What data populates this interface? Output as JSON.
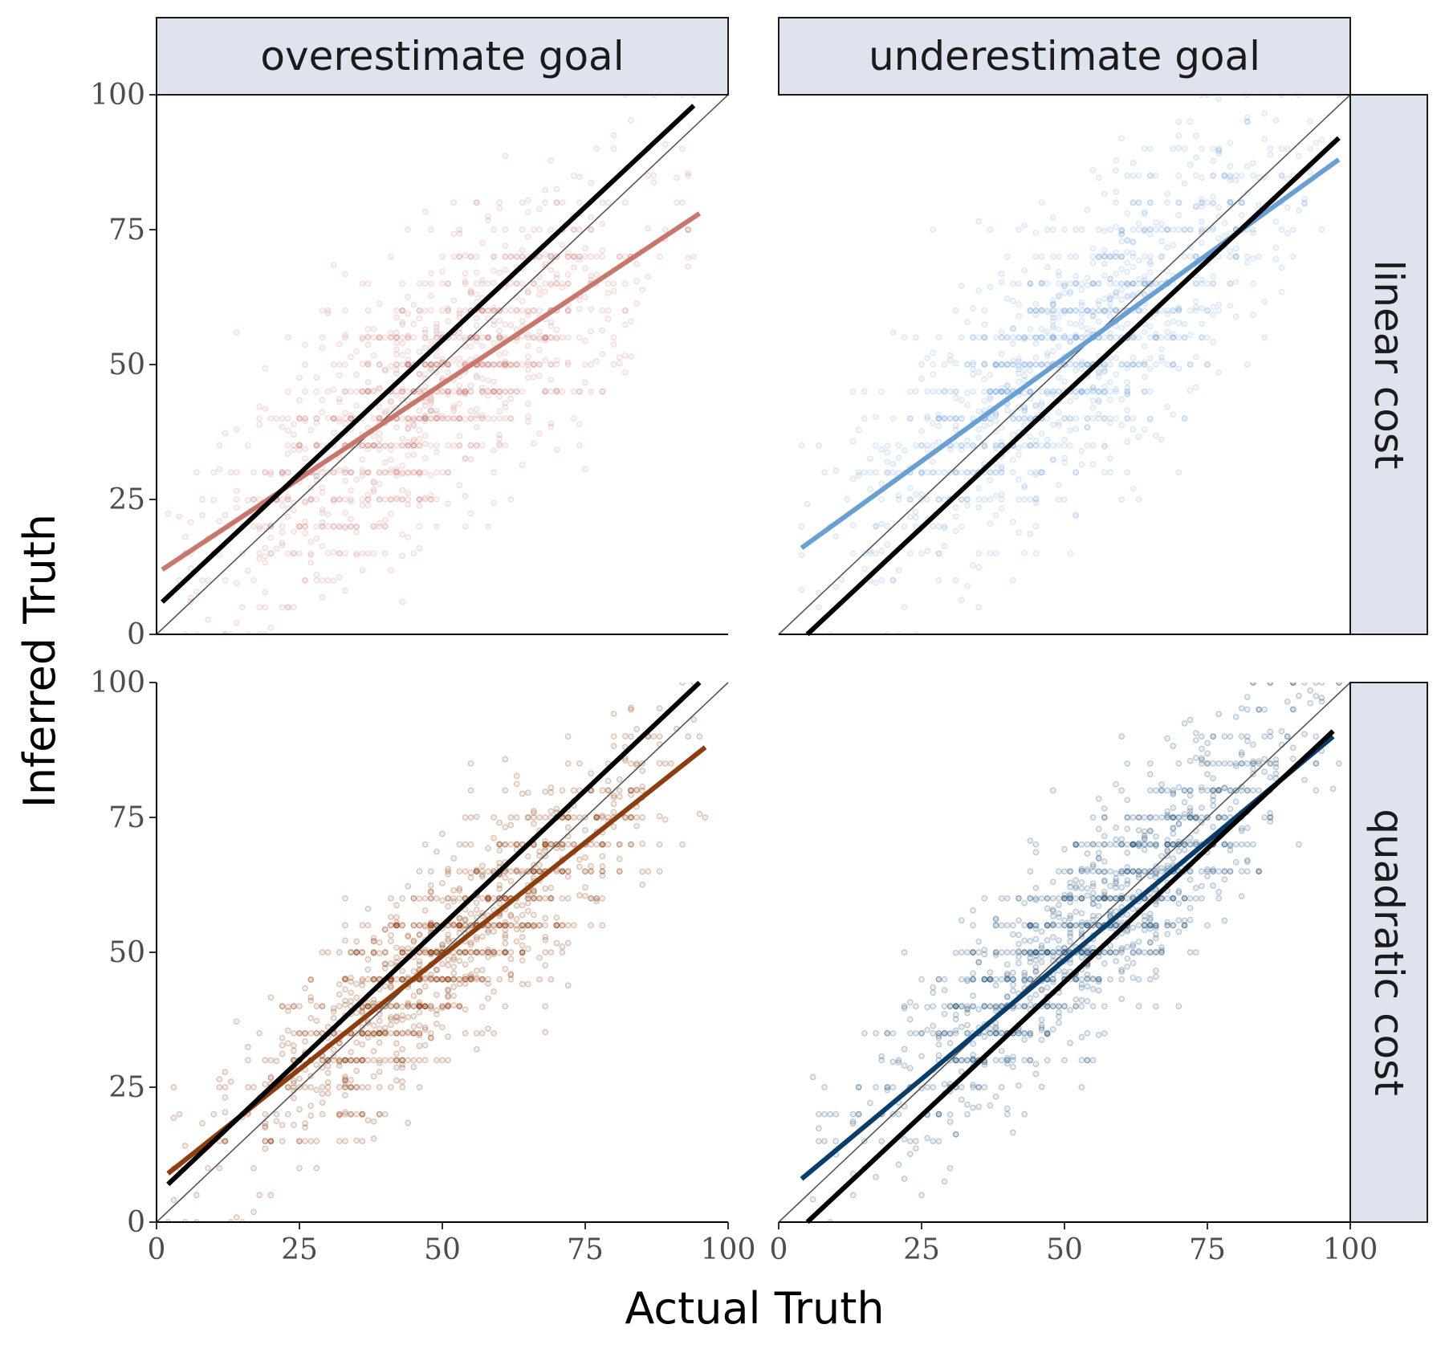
{
  "chart_data": {
    "type": "scatter",
    "layout": "facet-grid",
    "xlabel": "Actual Truth",
    "ylabel": "Inferred Truth",
    "xlim": [
      0,
      100
    ],
    "ylim": [
      0,
      100
    ],
    "xticks": [
      "0",
      "25",
      "50",
      "75",
      "100"
    ],
    "yticks": [
      "0",
      "25",
      "50",
      "75",
      "100"
    ],
    "column_labels": [
      "overestimate goal",
      "underestimate goal"
    ],
    "row_labels": [
      "linear cost",
      "quadratic cost"
    ],
    "reference_line": {
      "description": "identity y = x",
      "color": "#555555"
    },
    "panels": [
      {
        "column": "overestimate goal",
        "row": "linear cost",
        "point_color": "#c9766e",
        "point_opacity": 0.22,
        "point_cloud": {
          "slope": 0.72,
          "intercept": 11,
          "noise_sd": 12,
          "x_range": [
            2,
            96
          ],
          "x_center": 48,
          "n": 1300,
          "seed": 11
        },
        "fit_line": {
          "color": "#c9766e",
          "x": [
            1,
            95
          ],
          "y": [
            12,
            78
          ]
        },
        "black_line": {
          "color": "#000000",
          "x": [
            1,
            94
          ],
          "y": [
            6,
            98
          ]
        }
      },
      {
        "column": "underestimate goal",
        "row": "linear cost",
        "point_color": "#6a9fd4",
        "point_opacity": 0.22,
        "point_cloud": {
          "slope": 0.78,
          "intercept": 12,
          "noise_sd": 12,
          "x_range": [
            3,
            98
          ],
          "x_center": 52,
          "n": 1300,
          "seed": 23
        },
        "fit_line": {
          "color": "#6a9fd4",
          "x": [
            4,
            98
          ],
          "y": [
            16,
            88
          ]
        },
        "black_line": {
          "color": "#000000",
          "x": [
            5,
            98
          ],
          "y": [
            0,
            92
          ]
        }
      },
      {
        "column": "overestimate goal",
        "row": "quadratic cost",
        "point_color": "#8c3e10",
        "point_opacity": 0.28,
        "point_cloud": {
          "slope": 0.86,
          "intercept": 6,
          "noise_sd": 9,
          "x_range": [
            2,
            96
          ],
          "x_center": 50,
          "n": 1300,
          "seed": 37
        },
        "fit_line": {
          "color": "#8c3e10",
          "x": [
            2,
            96
          ],
          "y": [
            9,
            88
          ]
        },
        "black_line": {
          "color": "#000000",
          "x": [
            2,
            95
          ],
          "y": [
            7,
            100
          ]
        }
      },
      {
        "column": "underestimate goal",
        "row": "quadratic cost",
        "point_color": "#1d4f7a",
        "point_opacity": 0.28,
        "point_cloud": {
          "slope": 0.9,
          "intercept": 6,
          "noise_sd": 9,
          "x_range": [
            3,
            98
          ],
          "x_center": 55,
          "n": 1300,
          "seed": 53
        },
        "fit_line": {
          "color": "#0b3d6b",
          "x": [
            4,
            97
          ],
          "y": [
            8,
            90
          ]
        },
        "black_line": {
          "color": "#000000",
          "x": [
            5,
            97
          ],
          "y": [
            0,
            91
          ]
        }
      }
    ],
    "strip_fill": "#dee3ee",
    "grid": false
  }
}
